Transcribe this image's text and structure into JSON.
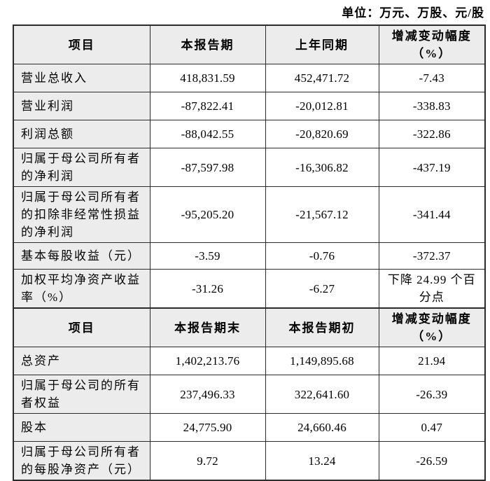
{
  "unit_note": "单位：万元、万股、元/股",
  "colors": {
    "shaded_cell": "#ececec",
    "table_border": "#2b2b2b",
    "text": "#000000",
    "page_background": "#ffffff"
  },
  "income_table": {
    "headers": {
      "item": "项目",
      "current_period": "本报告期",
      "prior_period": "上年同期",
      "change_line1": "增减变动幅度",
      "change_line2": "（%）"
    },
    "rows": [
      {
        "label": "营业总收入",
        "current": "418,831.59",
        "prior": "452,471.72",
        "change": "-7.43"
      },
      {
        "label": "营业利润",
        "current": "-87,822.41",
        "prior": "-20,012.81",
        "change": "-338.83"
      },
      {
        "label": "利润总额",
        "current": "-88,042.55",
        "prior": "-20,820.69",
        "change": "-322.86"
      },
      {
        "label": "归属于母公司所有者的净利润",
        "current": "-87,597.98",
        "prior": "-16,306.82",
        "change": "-437.19"
      },
      {
        "label": "归属于母公司所有者的扣除非经常性损益的净利润",
        "current": "-95,205.20",
        "prior": "-21,567.12",
        "change": "-341.44"
      },
      {
        "label": "基本每股收益（元）",
        "current": "-3.59",
        "prior": "-0.76",
        "change": "-372.37"
      },
      {
        "label": "加权平均净资产收益率（%）",
        "current": "-31.26",
        "prior": "-6.27",
        "change": "下降 24.99 个百分点"
      }
    ]
  },
  "balance_table": {
    "headers": {
      "item": "项目",
      "period_end": "本报告期末",
      "period_begin": "本报告期初",
      "change_line1": "增减变动幅度",
      "change_line2": "（%）"
    },
    "rows": [
      {
        "label": "总资产",
        "end": "1,402,213.76",
        "begin": "1,149,895.68",
        "change": "21.94"
      },
      {
        "label": "归属于母公司的所有者权益",
        "end": "237,496.33",
        "begin": "322,641.60",
        "change": "-26.39"
      },
      {
        "label": "股本",
        "end": "24,775.90",
        "begin": "24,660.46",
        "change": "0.47"
      },
      {
        "label": "归属于母公司所有者的每股净资产（元）",
        "end": "9.72",
        "begin": "13.24",
        "change": "-26.59"
      }
    ]
  }
}
